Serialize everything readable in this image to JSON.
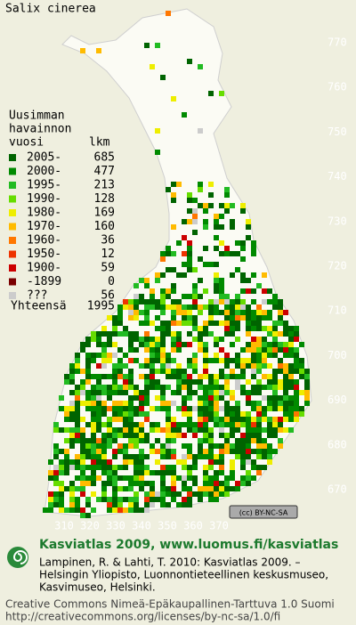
{
  "title": "Salix cinerea",
  "legend": {
    "header": [
      "Uusimman",
      "havainnon"
    ],
    "col_year": "vuosi",
    "col_count": "lkm",
    "rows": [
      {
        "label": "2005-",
        "count": 685,
        "color": "#006400"
      },
      {
        "label": "2000-",
        "count": 477,
        "color": "#008a00"
      },
      {
        "label": "1995-",
        "count": 213,
        "color": "#22bb22"
      },
      {
        "label": "1990-",
        "count": 128,
        "color": "#66dd00"
      },
      {
        "label": "1980-",
        "count": 169,
        "color": "#eeee00"
      },
      {
        "label": "1970-",
        "count": 160,
        "color": "#ffbb00"
      },
      {
        "label": "1960-",
        "count": 36,
        "color": "#ff7700"
      },
      {
        "label": "1950-",
        "count": 12,
        "color": "#ee3300"
      },
      {
        "label": "1900-",
        "count": 59,
        "color": "#cc0000"
      },
      {
        "label": "-1899",
        "count": 0,
        "color": "#7a0000"
      },
      {
        "label": "???",
        "count": 56,
        "color": "#cccccc"
      }
    ],
    "total_label": "Yhteensä",
    "total": 1995
  },
  "y_labels": [
    "770",
    "760",
    "750",
    "740",
    "730",
    "720",
    "710",
    "700",
    "690",
    "680",
    "670"
  ],
  "x_labels": [
    "310",
    "320",
    "330",
    "340",
    "350",
    "360",
    "370"
  ],
  "badge": "(cc) BY-NC-SA",
  "footer": {
    "heading": "Kasviatlas 2009, www.luomus.fi/kasviatlas",
    "citation": [
      "Lampinen, R. & Lahti, T. 2010: Kasviatlas 2009. –",
      "Helsingin Yliopisto, Luonnontieteellinen keskusmuseo,",
      "Kasvimuseo, Helsinki."
    ],
    "license": "Creative Commons Nimeä-Epäkaupallinen-Tarttuva 1.0 Suomi",
    "url": "http://creativecommons.org/licenses/by-nc-sa/1.0/fi"
  }
}
